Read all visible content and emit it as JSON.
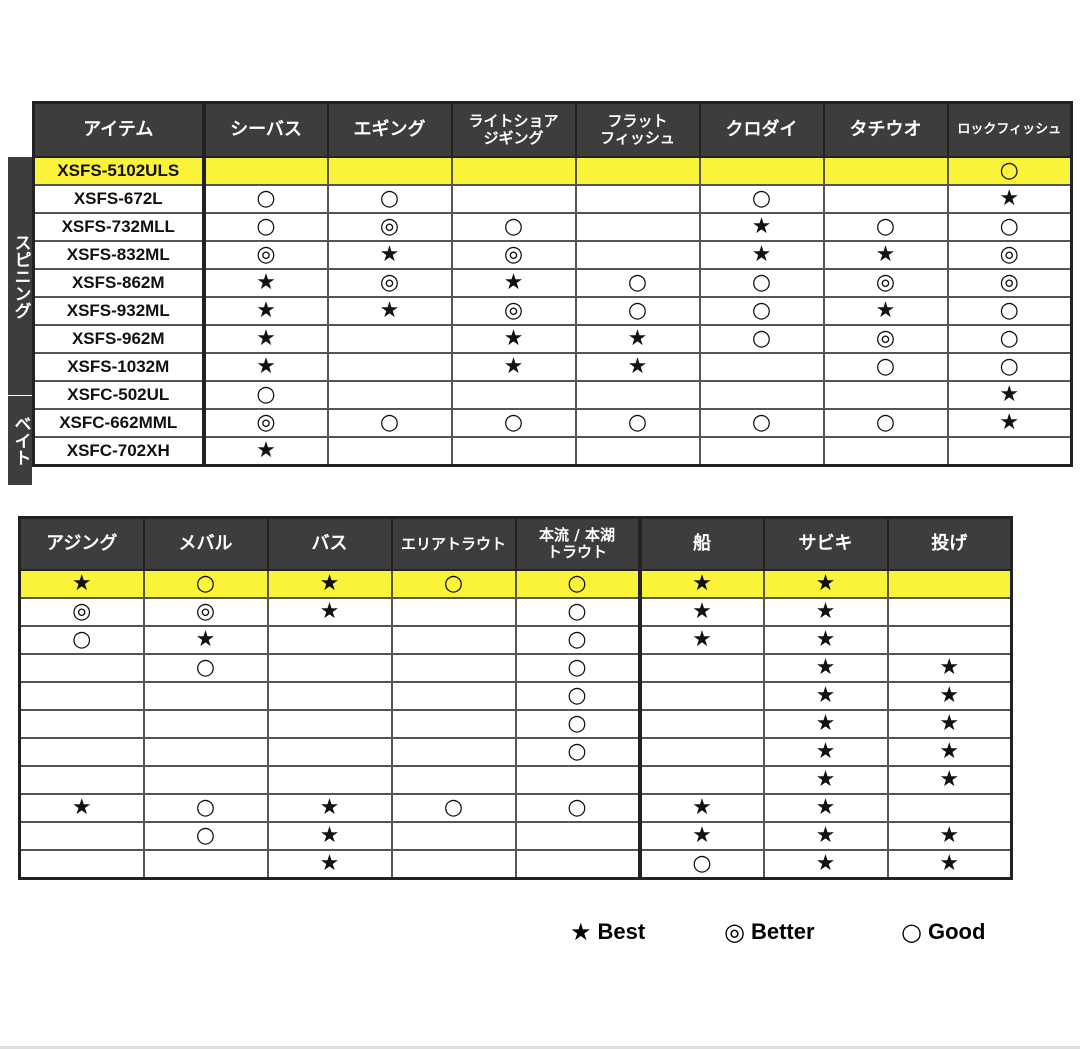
{
  "top_table": {
    "header_item": "アイテム",
    "columns": [
      "シーバス",
      "エギング",
      "ライトショア\nジギング",
      "フラット\nフィッシュ",
      "クロダイ",
      "タチウオ",
      "ロックフィッシュ"
    ],
    "groups": [
      {
        "label": "スピニング"
      },
      {
        "label": "ベイト"
      }
    ],
    "rows": [
      {
        "name": "XSFS-5102ULS",
        "highlight": true,
        "marks": [
          "",
          "",
          "",
          "",
          "",
          "",
          "○"
        ]
      },
      {
        "name": "XSFS-672L",
        "marks": [
          "○",
          "○",
          "",
          "",
          "○",
          "",
          "★"
        ]
      },
      {
        "name": "XSFS-732MLL",
        "marks": [
          "○",
          "◎",
          "○",
          "",
          "★",
          "○",
          "○"
        ]
      },
      {
        "name": "XSFS-832ML",
        "marks": [
          "◎",
          "★",
          "◎",
          "",
          "★",
          "★",
          "◎"
        ]
      },
      {
        "name": "XSFS-862M",
        "marks": [
          "★",
          "◎",
          "★",
          "○",
          "○",
          "◎",
          "◎"
        ]
      },
      {
        "name": "XSFS-932ML",
        "marks": [
          "★",
          "★",
          "◎",
          "○",
          "○",
          "★",
          "○"
        ]
      },
      {
        "name": "XSFS-962M",
        "marks": [
          "★",
          "",
          "★",
          "★",
          "○",
          "◎",
          "○"
        ]
      },
      {
        "name": "XSFS-1032M",
        "marks": [
          "★",
          "",
          "★",
          "★",
          "",
          "○",
          "○"
        ]
      },
      {
        "name": "XSFC-502UL",
        "marks": [
          "○",
          "",
          "",
          "",
          "",
          "",
          "★"
        ]
      },
      {
        "name": "XSFC-662MML",
        "marks": [
          "◎",
          "○",
          "○",
          "○",
          "○",
          "○",
          "★"
        ]
      },
      {
        "name": "XSFC-702XH",
        "marks": [
          "★",
          "",
          "",
          "",
          "",
          "",
          ""
        ]
      }
    ]
  },
  "bottom_table": {
    "columns": [
      "アジング",
      "メバル",
      "バス",
      "エリアトラウト",
      "本流 / 本湖\nトラウト",
      "船",
      "サビキ",
      "投げ"
    ],
    "rows": [
      {
        "highlight": true,
        "marks": [
          "★",
          "○",
          "★",
          "○",
          "○",
          "★",
          "★",
          ""
        ]
      },
      {
        "marks": [
          "◎",
          "◎",
          "★",
          "",
          "○",
          "★",
          "★",
          ""
        ]
      },
      {
        "marks": [
          "○",
          "★",
          "",
          "",
          "○",
          "★",
          "★",
          ""
        ]
      },
      {
        "marks": [
          "",
          "○",
          "",
          "",
          "○",
          "",
          "★",
          "★"
        ]
      },
      {
        "marks": [
          "",
          "",
          "",
          "",
          "○",
          "",
          "★",
          "★"
        ]
      },
      {
        "marks": [
          "",
          "",
          "",
          "",
          "○",
          "",
          "★",
          "★"
        ]
      },
      {
        "marks": [
          "",
          "",
          "",
          "",
          "○",
          "",
          "★",
          "★"
        ]
      },
      {
        "marks": [
          "",
          "",
          "",
          "",
          "",
          "",
          "★",
          "★"
        ]
      },
      {
        "marks": [
          "★",
          "○",
          "★",
          "○",
          "○",
          "★",
          "★",
          ""
        ]
      },
      {
        "marks": [
          "",
          "○",
          "★",
          "",
          "",
          "★",
          "★",
          "★"
        ]
      },
      {
        "marks": [
          "",
          "",
          "★",
          "",
          "",
          "○",
          "★",
          "★"
        ]
      }
    ]
  },
  "legend": [
    {
      "symbol": "★",
      "label": "Best"
    },
    {
      "symbol": "◎",
      "label": "Better"
    },
    {
      "symbol": "○",
      "label": "Good"
    }
  ],
  "colors": {
    "header_bg": "#3d3d3d",
    "highlight": "#fbf33a"
  }
}
